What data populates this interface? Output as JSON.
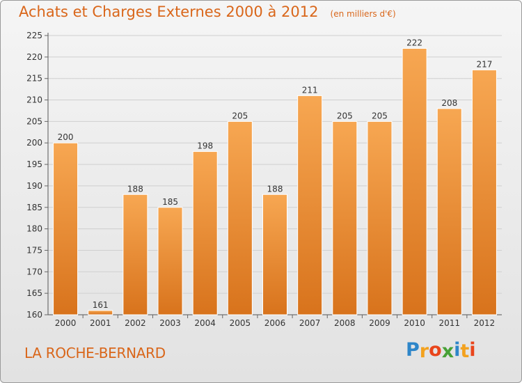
{
  "title": "Achats et Charges Externes 2000 à 2012",
  "unit_note": "(en milliers d'€)",
  "commune": "LA ROCHE-BERNARD",
  "logo": {
    "letters": [
      "P",
      "r",
      "o",
      "x",
      "i",
      "t",
      "i"
    ],
    "colors": [
      "#2e86c9",
      "#f3a21f",
      "#e9451b",
      "#47a136",
      "#2e86c9",
      "#f3a21f",
      "#e9451b"
    ]
  },
  "colors": {
    "accent": "#d9661a",
    "bar_top": "#f7a752",
    "bar_bottom": "#d8731c"
  },
  "chart_data": {
    "type": "bar",
    "title": "Achats et Charges Externes 2000 à 2012",
    "xlabel": "",
    "ylabel": "",
    "categories": [
      "2000",
      "2001",
      "2002",
      "2003",
      "2004",
      "2005",
      "2006",
      "2007",
      "2008",
      "2009",
      "2010",
      "2011",
      "2012"
    ],
    "values": [
      200,
      161,
      188,
      185,
      198,
      205,
      188,
      211,
      205,
      205,
      222,
      208,
      217
    ],
    "ylim": [
      160,
      225
    ],
    "yticks": [
      160,
      165,
      170,
      175,
      180,
      185,
      190,
      195,
      200,
      205,
      210,
      215,
      220,
      225
    ],
    "grid": true,
    "legend": "none"
  }
}
